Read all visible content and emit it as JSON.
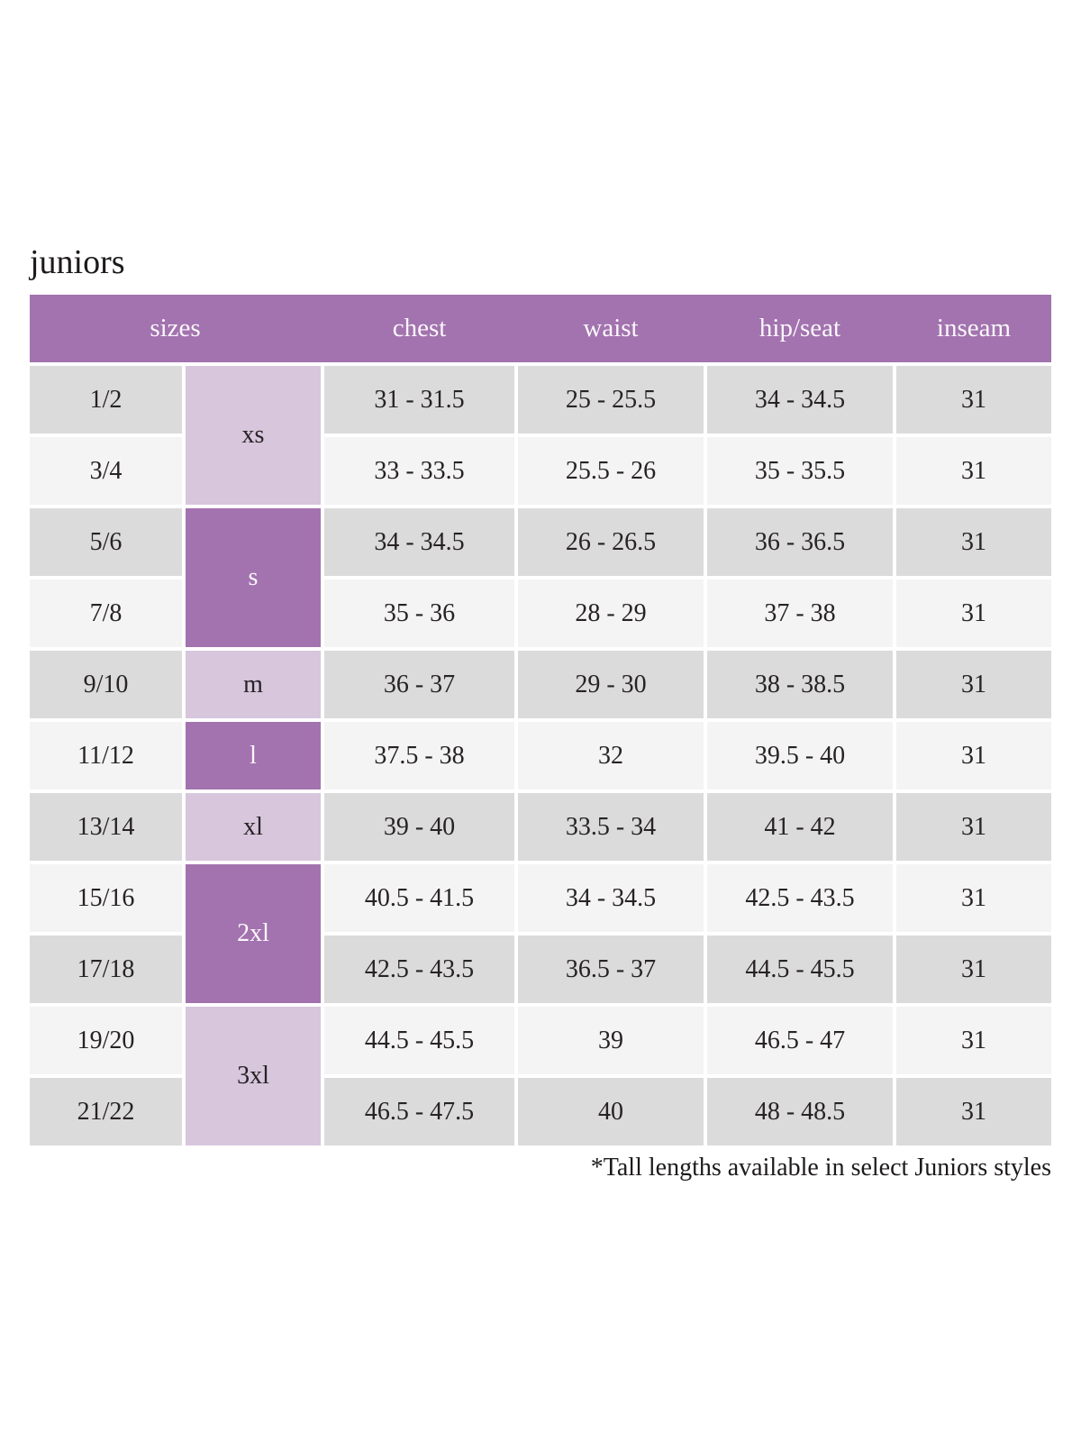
{
  "colors": {
    "header_purple": "#a273ae",
    "light_purple": "#d7c6dc",
    "row_gray": "#dbdbdb",
    "row_light": "#f4f4f4",
    "header_text": "#fbf6fc",
    "body_text": "#272225",
    "title_text": "#1d1a1b"
  },
  "chart_data": {
    "type": "table",
    "title": "juniors",
    "footnote": "*Tall lengths available in select Juniors styles",
    "columns": [
      "sizes",
      "chest",
      "waist",
      "hip/seat",
      "inseam"
    ],
    "size_groups": [
      {
        "label": "xs",
        "span": 2,
        "shade": "light"
      },
      {
        "label": "s",
        "span": 2,
        "shade": "dark"
      },
      {
        "label": "m",
        "span": 1,
        "shade": "light"
      },
      {
        "label": "l",
        "span": 1,
        "shade": "dark"
      },
      {
        "label": "xl",
        "span": 1,
        "shade": "light"
      },
      {
        "label": "2xl",
        "span": 2,
        "shade": "dark"
      },
      {
        "label": "3xl",
        "span": 2,
        "shade": "light"
      }
    ],
    "rows": [
      {
        "sizes": "1/2",
        "chest": "31 - 31.5",
        "waist": "25 - 25.5",
        "hip_seat": "34 - 34.5",
        "inseam": "31"
      },
      {
        "sizes": "3/4",
        "chest": "33 - 33.5",
        "waist": "25.5 - 26",
        "hip_seat": "35 - 35.5",
        "inseam": "31"
      },
      {
        "sizes": "5/6",
        "chest": "34 - 34.5",
        "waist": "26 - 26.5",
        "hip_seat": "36 - 36.5",
        "inseam": "31"
      },
      {
        "sizes": "7/8",
        "chest": "35 - 36",
        "waist": "28 - 29",
        "hip_seat": "37 - 38",
        "inseam": "31"
      },
      {
        "sizes": "9/10",
        "chest": "36 - 37",
        "waist": "29 - 30",
        "hip_seat": "38 - 38.5",
        "inseam": "31"
      },
      {
        "sizes": "11/12",
        "chest": "37.5 - 38",
        "waist": "32",
        "hip_seat": "39.5 - 40",
        "inseam": "31"
      },
      {
        "sizes": "13/14",
        "chest": "39 - 40",
        "waist": "33.5 - 34",
        "hip_seat": "41 - 42",
        "inseam": "31"
      },
      {
        "sizes": "15/16",
        "chest": "40.5 - 41.5",
        "waist": "34 - 34.5",
        "hip_seat": "42.5 - 43.5",
        "inseam": "31"
      },
      {
        "sizes": "17/18",
        "chest": "42.5 - 43.5",
        "waist": "36.5 - 37",
        "hip_seat": "44.5 - 45.5",
        "inseam": "31"
      },
      {
        "sizes": "19/20",
        "chest": "44.5 - 45.5",
        "waist": "39",
        "hip_seat": "46.5 - 47",
        "inseam": "31"
      },
      {
        "sizes": "21/22",
        "chest": "46.5 - 47.5",
        "waist": "40",
        "hip_seat": "48 - 48.5",
        "inseam": "31"
      }
    ]
  }
}
